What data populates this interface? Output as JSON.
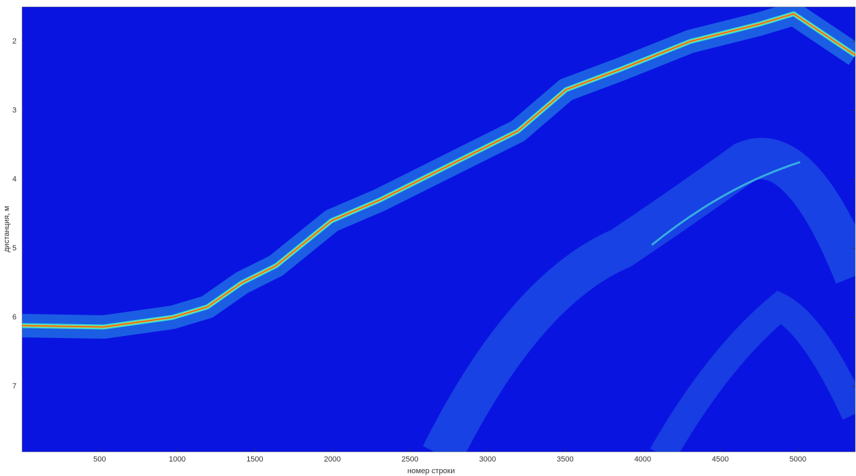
{
  "chart_data": {
    "type": "line",
    "x_label": "номер строки",
    "y_label": "дистанция, м",
    "xlim": [
      0,
      5370
    ],
    "ylim": [
      7.95,
      1.5
    ],
    "y_reversed": true,
    "xticks": [
      500,
      1000,
      1500,
      2000,
      2500,
      3000,
      3500,
      4000,
      4500,
      5000
    ],
    "yticks": [
      2,
      3,
      4,
      5,
      6,
      7
    ],
    "background": "#0a14e0",
    "series": [
      {
        "color": "#f0c020",
        "x": [
          0,
          527,
          970,
          1193,
          1416,
          1638,
          1994,
          2305,
          2750,
          3195,
          3506,
          3862,
          4307,
          4751,
          4973,
          5370
        ],
        "values": [
          6.12,
          6.14,
          6.0,
          5.85,
          5.5,
          5.25,
          4.6,
          4.3,
          3.8,
          3.3,
          2.7,
          2.4,
          2.0,
          1.75,
          1.6,
          2.2
        ]
      }
    ]
  }
}
